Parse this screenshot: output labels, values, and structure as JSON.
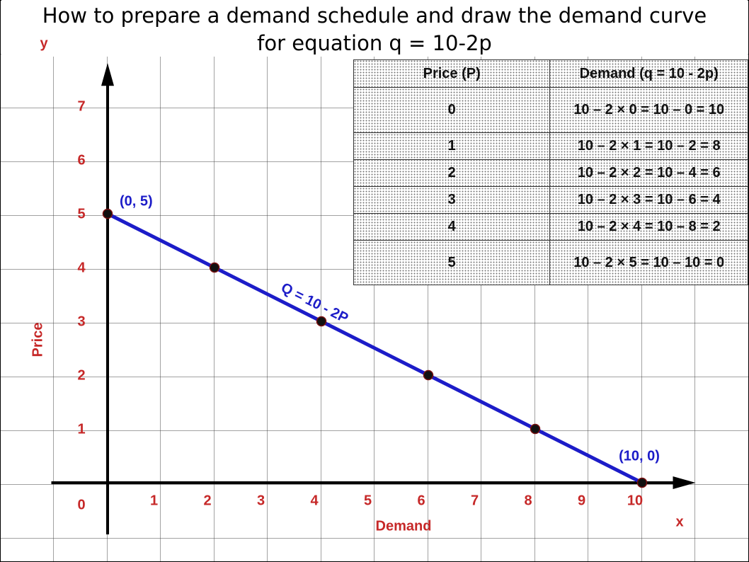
{
  "chart_data": {
    "type": "line",
    "title": [
      "How to prepare a demand schedule and draw the demand curve",
      "for equation q = 10-2p"
    ],
    "x_label": "Demand",
    "y_label": "Price",
    "x_axis_name": "x",
    "y_axis_name": "y",
    "x": [
      0,
      2,
      4,
      6,
      8,
      10
    ],
    "series": [
      {
        "name": "Q = 10 - 2P",
        "color": "#1c1cc8",
        "values": [
          5,
          4,
          3,
          2,
          1,
          0
        ]
      }
    ],
    "annotations": [
      "(0, 5)",
      "(10, 0)"
    ],
    "xlim": [
      -1,
      11
    ],
    "ylim": [
      -1,
      7.8
    ],
    "xticks": [
      0,
      1,
      2,
      3,
      4,
      5,
      6,
      7,
      8,
      9,
      10
    ],
    "yticks": [
      1,
      2,
      3,
      4,
      5,
      6,
      7
    ],
    "grid": true
  },
  "table": {
    "header": [
      "Price (P)",
      "Demand (q = 10 - 2p)"
    ],
    "rows": [
      [
        "0",
        "10 – 2 × 0 = 10 – 0 = 10"
      ],
      [
        "1",
        "10 – 2 × 1 = 10 – 2 = 8"
      ],
      [
        "2",
        "10 – 2 × 2 = 10 – 4 = 6"
      ],
      [
        "3",
        "10 – 2 × 3 = 10 – 6 = 4"
      ],
      [
        "4",
        "10 – 2 × 4 = 10 – 8 = 2"
      ],
      [
        "5",
        "10 – 2 × 5 = 10 – 10 = 0"
      ]
    ]
  }
}
